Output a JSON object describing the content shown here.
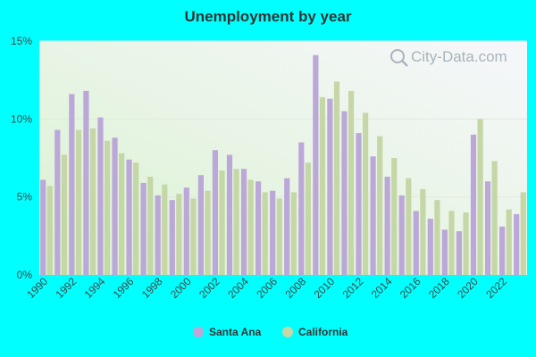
{
  "chart_data": {
    "type": "bar",
    "title": "Unemployment by year",
    "x": [
      1990,
      1991,
      1992,
      1993,
      1994,
      1995,
      1996,
      1997,
      1998,
      1999,
      2000,
      2001,
      2002,
      2003,
      2004,
      2005,
      2006,
      2007,
      2008,
      2009,
      2010,
      2011,
      2012,
      2013,
      2014,
      2015,
      2016,
      2017,
      2018,
      2019,
      2020,
      2021,
      2022,
      2023
    ],
    "x_tick_labels": [
      "1990",
      "1992",
      "1994",
      "1996",
      "1998",
      "2000",
      "2002",
      "2004",
      "2006",
      "2008",
      "2010",
      "2012",
      "2014",
      "2016",
      "2018",
      "2020",
      "2022"
    ],
    "y_tick_labels": [
      "0%",
      "5%",
      "10%",
      "15%"
    ],
    "ylim": [
      0,
      15
    ],
    "xlabel": "",
    "ylabel": "",
    "grid": true,
    "legend_position": "bottom-center",
    "series": [
      {
        "name": "Santa Ana",
        "color": "#bba8d8",
        "values": [
          6.1,
          9.3,
          11.6,
          11.8,
          10.1,
          8.8,
          7.4,
          5.9,
          5.1,
          4.8,
          5.6,
          6.4,
          8.0,
          7.7,
          6.8,
          6.0,
          5.4,
          6.2,
          8.5,
          14.1,
          11.3,
          10.5,
          9.1,
          7.6,
          6.3,
          5.1,
          4.1,
          3.6,
          2.9,
          2.8,
          9.0,
          6.0,
          3.1,
          3.9
        ]
      },
      {
        "name": "California",
        "color": "#c5d7a6",
        "values": [
          5.7,
          7.7,
          9.3,
          9.4,
          8.6,
          7.8,
          7.2,
          6.3,
          5.8,
          5.2,
          4.9,
          5.4,
          6.7,
          6.8,
          6.1,
          5.3,
          4.9,
          5.3,
          7.2,
          11.4,
          12.4,
          11.8,
          10.4,
          8.9,
          7.5,
          6.2,
          5.5,
          4.8,
          4.1,
          4.0,
          10.0,
          7.3,
          4.2,
          5.3
        ]
      }
    ],
    "watermark": "City-Data.com"
  }
}
